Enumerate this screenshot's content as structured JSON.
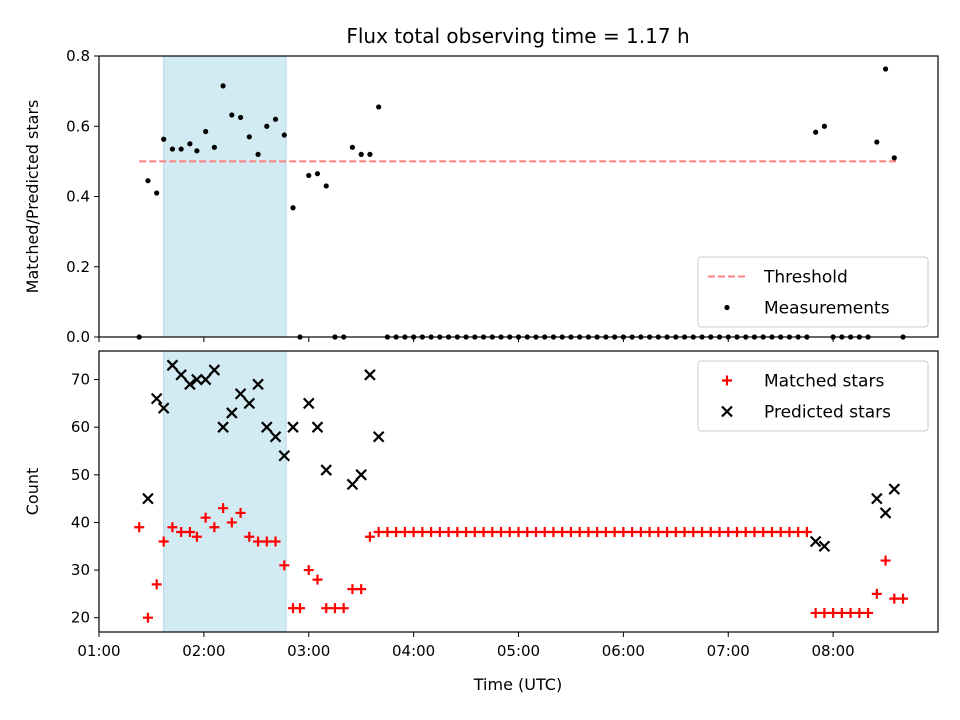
{
  "chart_data": {
    "title": "Flux total observing time = 1.17 h",
    "xlabel": "Time (UTC)",
    "x_range": [
      "01:00",
      "09:00"
    ],
    "x_ticks": [
      "01:00",
      "02:00",
      "03:00",
      "04:00",
      "05:00",
      "06:00",
      "07:00",
      "08:00"
    ],
    "shaded_interval": [
      "01:37",
      "02:47"
    ],
    "shade_color": "#add8e6",
    "panels": [
      {
        "type": "scatter",
        "ylabel": "Matched/Predicted stars",
        "ylim": [
          0,
          0.8
        ],
        "y_ticks": [
          "0.0",
          "0.2",
          "0.4",
          "0.6",
          "0.8"
        ],
        "legend_position": "lower-right",
        "threshold": {
          "name": "Threshold",
          "value": 0.5,
          "x_range": [
            "01:23",
            "08:36"
          ],
          "color": "#ff8080"
        },
        "series": [
          {
            "name": "Measurements",
            "color": "#000000",
            "points": [
              [
                "01:23",
                0.0
              ],
              [
                "01:28",
                0.445
              ],
              [
                "01:33",
                0.41
              ],
              [
                "01:37",
                0.563
              ],
              [
                "01:42",
                0.535
              ],
              [
                "01:47",
                0.535
              ],
              [
                "01:52",
                0.55
              ],
              [
                "01:56",
                0.53
              ],
              [
                "02:01",
                0.585
              ],
              [
                "02:06",
                0.54
              ],
              [
                "02:11",
                0.715
              ],
              [
                "02:16",
                0.632
              ],
              [
                "02:21",
                0.625
              ],
              [
                "02:26",
                0.57
              ],
              [
                "02:31",
                0.52
              ],
              [
                "02:36",
                0.6
              ],
              [
                "02:41",
                0.62
              ],
              [
                "02:46",
                0.575
              ],
              [
                "02:51",
                0.368
              ],
              [
                "02:55",
                0.0
              ],
              [
                "03:00",
                0.46
              ],
              [
                "03:05",
                0.465
              ],
              [
                "03:10",
                0.43
              ],
              [
                "03:15",
                0.0
              ],
              [
                "03:20",
                0.0
              ],
              [
                "03:25",
                0.54
              ],
              [
                "03:30",
                0.52
              ],
              [
                "03:35",
                0.52
              ],
              [
                "03:40",
                0.655
              ],
              [
                "03:45",
                0.0
              ],
              [
                "03:50",
                0.0
              ],
              [
                "03:55",
                0.0
              ],
              [
                "04:00",
                0.0
              ],
              [
                "04:05",
                0.0
              ],
              [
                "04:10",
                0.0
              ],
              [
                "04:15",
                0.0
              ],
              [
                "04:20",
                0.0
              ],
              [
                "04:25",
                0.0
              ],
              [
                "04:30",
                0.0
              ],
              [
                "04:35",
                0.0
              ],
              [
                "04:40",
                0.0
              ],
              [
                "04:45",
                0.0
              ],
              [
                "04:50",
                0.0
              ],
              [
                "04:55",
                0.0
              ],
              [
                "05:00",
                0.0
              ],
              [
                "05:05",
                0.0
              ],
              [
                "05:10",
                0.0
              ],
              [
                "05:15",
                0.0
              ],
              [
                "05:20",
                0.0
              ],
              [
                "05:25",
                0.0
              ],
              [
                "05:30",
                0.0
              ],
              [
                "05:35",
                0.0
              ],
              [
                "05:40",
                0.0
              ],
              [
                "05:45",
                0.0
              ],
              [
                "05:50",
                0.0
              ],
              [
                "05:55",
                0.0
              ],
              [
                "06:00",
                0.0
              ],
              [
                "06:05",
                0.0
              ],
              [
                "06:10",
                0.0
              ],
              [
                "06:15",
                0.0
              ],
              [
                "06:20",
                0.0
              ],
              [
                "06:25",
                0.0
              ],
              [
                "06:30",
                0.0
              ],
              [
                "06:35",
                0.0
              ],
              [
                "06:40",
                0.0
              ],
              [
                "06:45",
                0.0
              ],
              [
                "06:50",
                0.0
              ],
              [
                "06:55",
                0.0
              ],
              [
                "07:00",
                0.0
              ],
              [
                "07:05",
                0.0
              ],
              [
                "07:10",
                0.0
              ],
              [
                "07:15",
                0.0
              ],
              [
                "07:20",
                0.0
              ],
              [
                "07:25",
                0.0
              ],
              [
                "07:30",
                0.0
              ],
              [
                "07:35",
                0.0
              ],
              [
                "07:40",
                0.0
              ],
              [
                "07:45",
                0.0
              ],
              [
                "07:50",
                0.583
              ],
              [
                "07:55",
                0.6
              ],
              [
                "08:00",
                0.0
              ],
              [
                "08:05",
                0.0
              ],
              [
                "08:10",
                0.0
              ],
              [
                "08:15",
                0.0
              ],
              [
                "08:20",
                0.0
              ],
              [
                "08:25",
                0.555
              ],
              [
                "08:30",
                0.763
              ],
              [
                "08:35",
                0.51
              ],
              [
                "08:40",
                0.0
              ]
            ]
          }
        ]
      },
      {
        "type": "scatter",
        "ylabel": "Count",
        "ylim": [
          17,
          76
        ],
        "y_ticks": [
          "20",
          "30",
          "40",
          "50",
          "60",
          "70"
        ],
        "legend_position": "upper-right",
        "series": [
          {
            "name": "Matched stars",
            "marker": "+",
            "color": "#ff0000",
            "points": [
              [
                "01:23",
                39
              ],
              [
                "01:28",
                20
              ],
              [
                "01:33",
                27
              ],
              [
                "01:37",
                36
              ],
              [
                "01:42",
                39
              ],
              [
                "01:47",
                38
              ],
              [
                "01:52",
                38
              ],
              [
                "01:56",
                37
              ],
              [
                "02:01",
                41
              ],
              [
                "02:06",
                39
              ],
              [
                "02:11",
                43
              ],
              [
                "02:16",
                40
              ],
              [
                "02:21",
                42
              ],
              [
                "02:26",
                37
              ],
              [
                "02:31",
                36
              ],
              [
                "02:36",
                36
              ],
              [
                "02:41",
                36
              ],
              [
                "02:46",
                31
              ],
              [
                "02:51",
                22
              ],
              [
                "02:55",
                22
              ],
              [
                "03:00",
                30
              ],
              [
                "03:05",
                28
              ],
              [
                "03:10",
                22
              ],
              [
                "03:15",
                22
              ],
              [
                "03:20",
                22
              ],
              [
                "03:25",
                26
              ],
              [
                "03:30",
                26
              ],
              [
                "03:35",
                37
              ],
              [
                "03:40",
                38
              ],
              [
                "03:45",
                38
              ],
              [
                "03:50",
                38
              ],
              [
                "03:55",
                38
              ],
              [
                "04:00",
                38
              ],
              [
                "04:05",
                38
              ],
              [
                "04:10",
                38
              ],
              [
                "04:15",
                38
              ],
              [
                "04:20",
                38
              ],
              [
                "04:25",
                38
              ],
              [
                "04:30",
                38
              ],
              [
                "04:35",
                38
              ],
              [
                "04:40",
                38
              ],
              [
                "04:45",
                38
              ],
              [
                "04:50",
                38
              ],
              [
                "04:55",
                38
              ],
              [
                "05:00",
                38
              ],
              [
                "05:05",
                38
              ],
              [
                "05:10",
                38
              ],
              [
                "05:15",
                38
              ],
              [
                "05:20",
                38
              ],
              [
                "05:25",
                38
              ],
              [
                "05:30",
                38
              ],
              [
                "05:35",
                38
              ],
              [
                "05:40",
                38
              ],
              [
                "05:45",
                38
              ],
              [
                "05:50",
                38
              ],
              [
                "05:55",
                38
              ],
              [
                "06:00",
                38
              ],
              [
                "06:05",
                38
              ],
              [
                "06:10",
                38
              ],
              [
                "06:15",
                38
              ],
              [
                "06:20",
                38
              ],
              [
                "06:25",
                38
              ],
              [
                "06:30",
                38
              ],
              [
                "06:35",
                38
              ],
              [
                "06:40",
                38
              ],
              [
                "06:45",
                38
              ],
              [
                "06:50",
                38
              ],
              [
                "06:55",
                38
              ],
              [
                "07:00",
                38
              ],
              [
                "07:05",
                38
              ],
              [
                "07:10",
                38
              ],
              [
                "07:15",
                38
              ],
              [
                "07:20",
                38
              ],
              [
                "07:25",
                38
              ],
              [
                "07:30",
                38
              ],
              [
                "07:35",
                38
              ],
              [
                "07:40",
                38
              ],
              [
                "07:45",
                38
              ],
              [
                "07:50",
                21
              ],
              [
                "07:55",
                21
              ],
              [
                "08:00",
                21
              ],
              [
                "08:05",
                21
              ],
              [
                "08:10",
                21
              ],
              [
                "08:15",
                21
              ],
              [
                "08:20",
                21
              ],
              [
                "08:25",
                25
              ],
              [
                "08:30",
                32
              ],
              [
                "08:35",
                24
              ],
              [
                "08:40",
                24
              ]
            ]
          },
          {
            "name": "Predicted stars",
            "marker": "x",
            "color": "#000000",
            "points": [
              [
                "01:28",
                45
              ],
              [
                "01:33",
                66
              ],
              [
                "01:37",
                64
              ],
              [
                "01:42",
                73
              ],
              [
                "01:47",
                71
              ],
              [
                "01:52",
                69
              ],
              [
                "01:56",
                70
              ],
              [
                "02:01",
                70
              ],
              [
                "02:06",
                72
              ],
              [
                "02:11",
                60
              ],
              [
                "02:16",
                63
              ],
              [
                "02:21",
                67
              ],
              [
                "02:26",
                65
              ],
              [
                "02:31",
                69
              ],
              [
                "02:36",
                60
              ],
              [
                "02:41",
                58
              ],
              [
                "02:46",
                54
              ],
              [
                "02:51",
                60
              ],
              [
                "03:00",
                65
              ],
              [
                "03:05",
                60
              ],
              [
                "03:10",
                51
              ],
              [
                "03:25",
                48
              ],
              [
                "03:30",
                50
              ],
              [
                "03:35",
                71
              ],
              [
                "03:40",
                58
              ],
              [
                "07:50",
                36
              ],
              [
                "07:55",
                35
              ],
              [
                "08:25",
                45
              ],
              [
                "08:30",
                42
              ],
              [
                "08:35",
                47
              ]
            ]
          }
        ]
      }
    ]
  }
}
